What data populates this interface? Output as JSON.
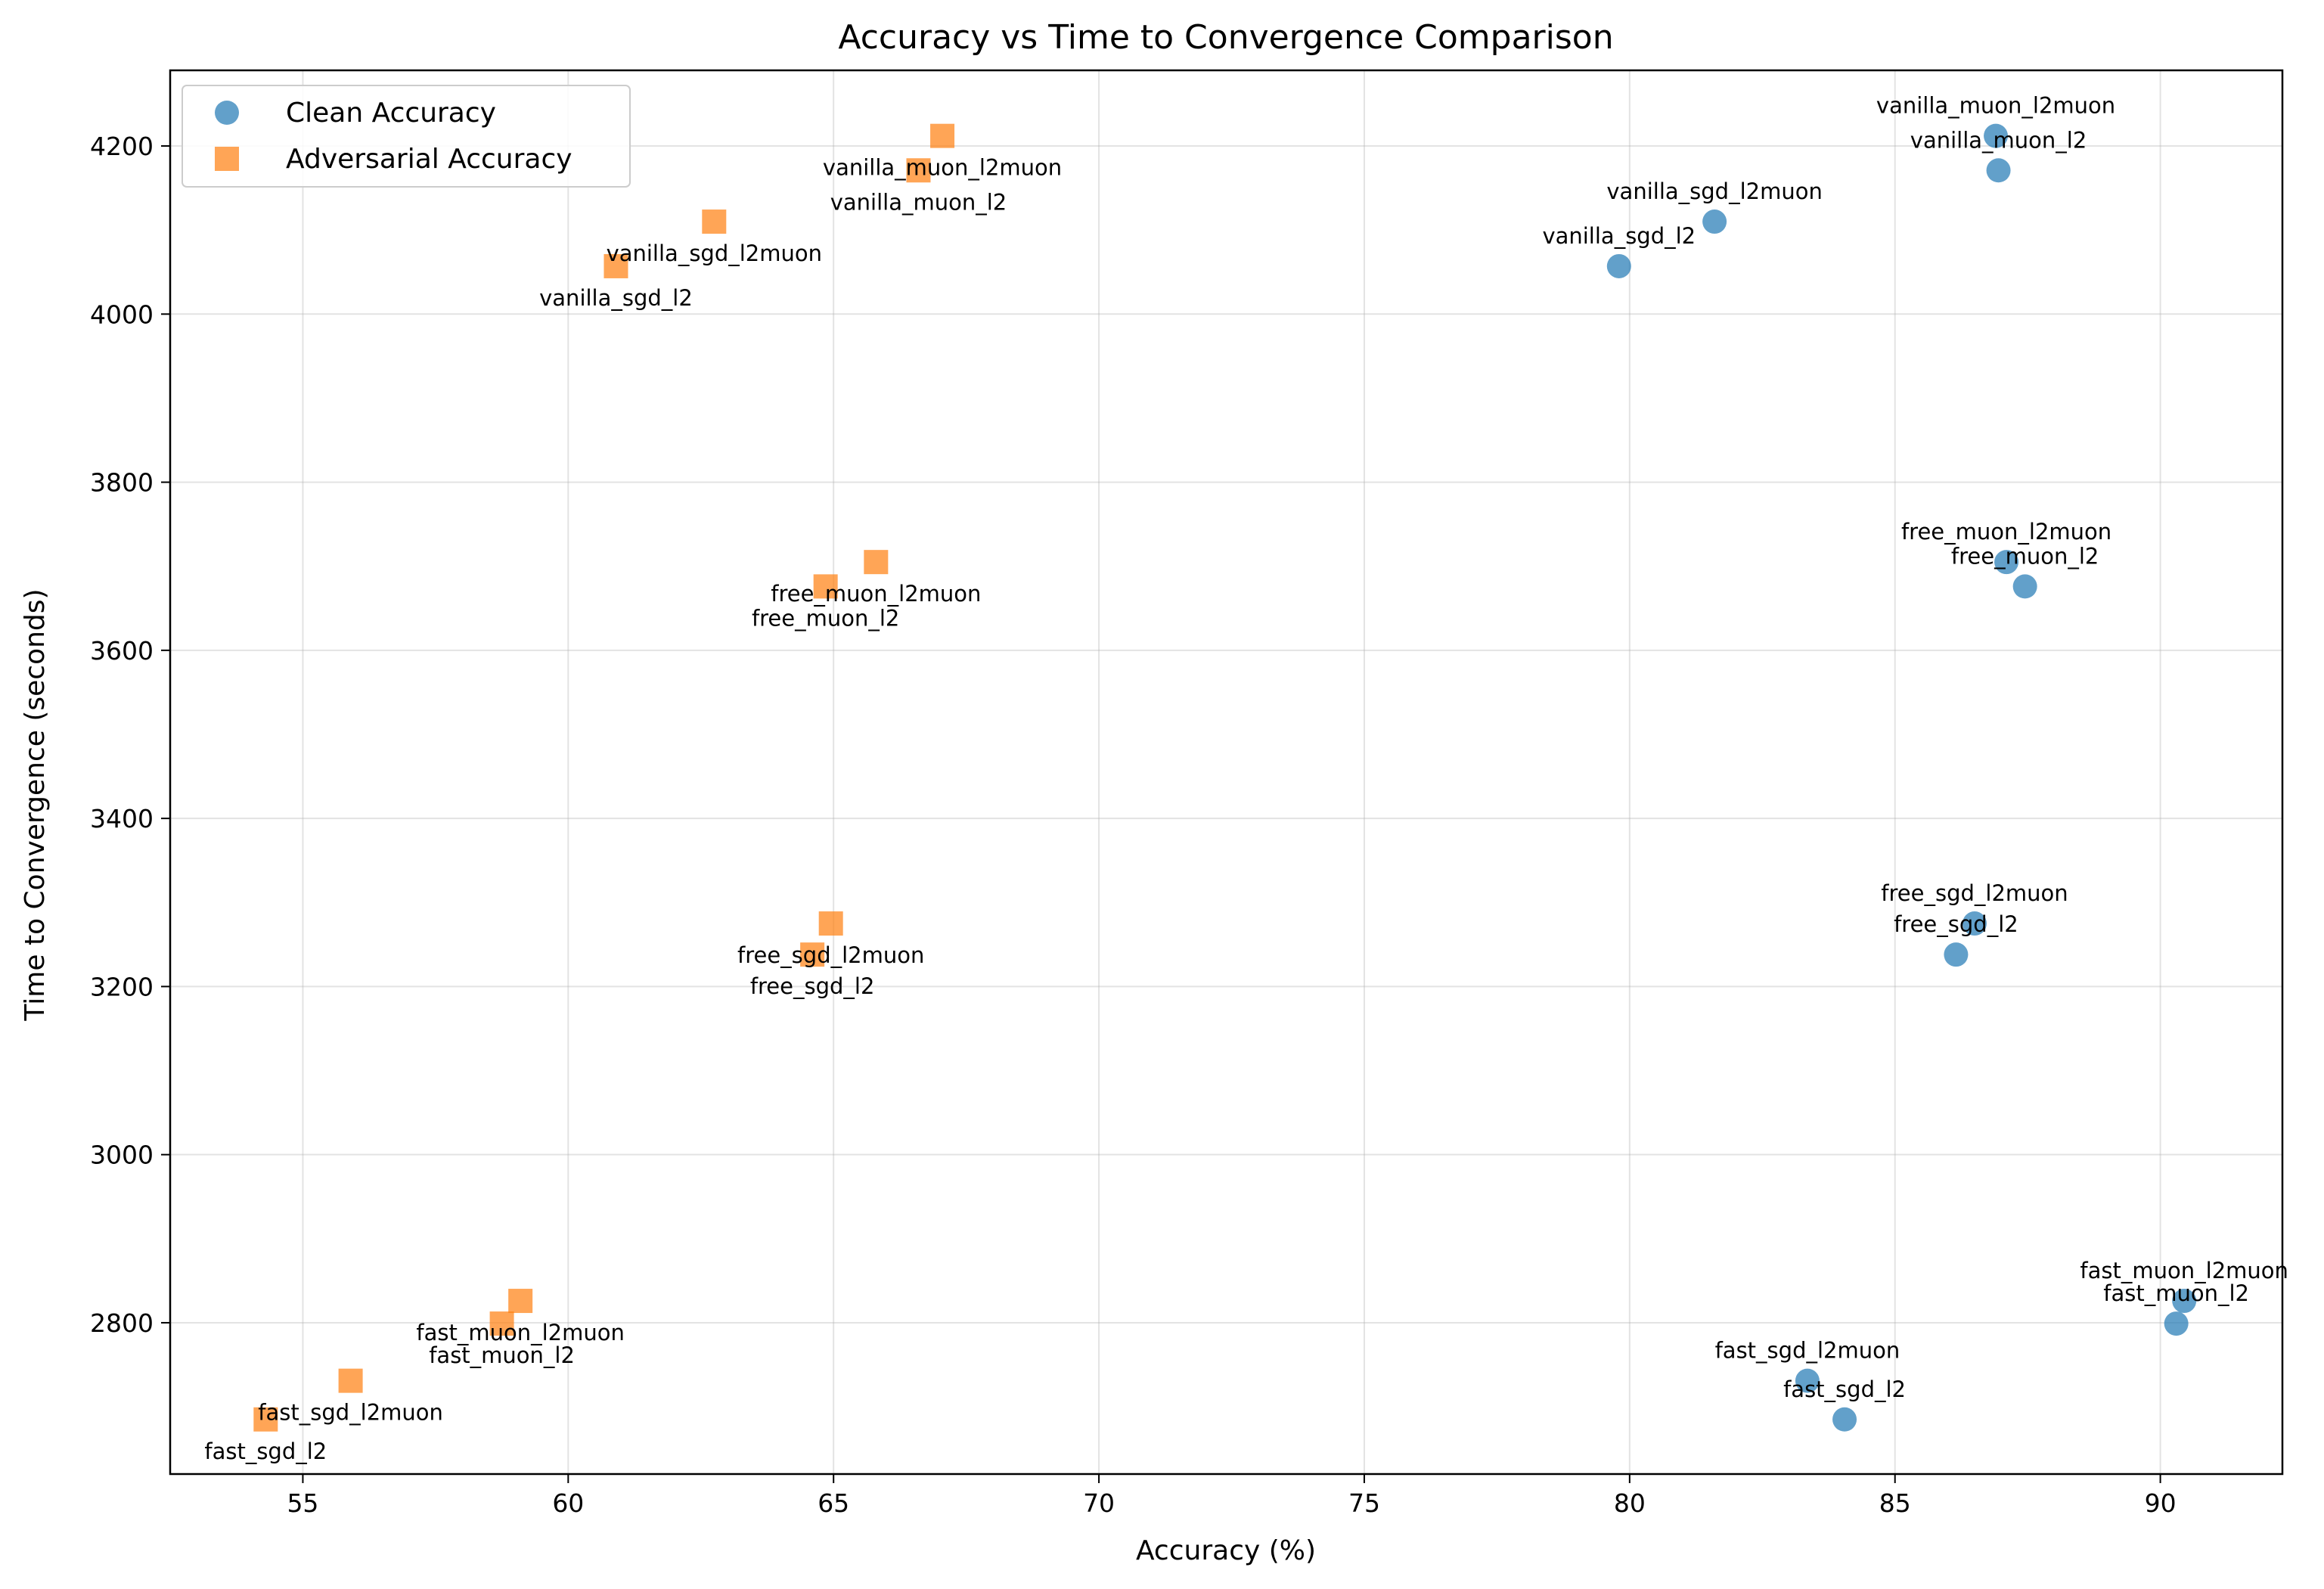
{
  "chart_data": {
    "type": "scatter",
    "title": "Accuracy vs Time to Convergence Comparison",
    "xlabel": "Accuracy (%)",
    "ylabel": "Time to Convergence (seconds)",
    "xlim": [
      52.5,
      92.3
    ],
    "ylim": [
      2620,
      4290
    ],
    "xticks": [
      55,
      60,
      65,
      70,
      75,
      80,
      85,
      90
    ],
    "yticks": [
      2800,
      3000,
      3200,
      3400,
      3600,
      3800,
      4000,
      4200
    ],
    "grid": true,
    "legend_position": "top-left",
    "series": [
      {
        "name": "Clean Accuracy",
        "marker": "circle",
        "color": "#1f77b4",
        "points": [
          {
            "label": "vanilla_muon_l2muon",
            "x": 86.9,
            "y": 4212
          },
          {
            "label": "vanilla_muon_l2",
            "x": 86.95,
            "y": 4171
          },
          {
            "label": "vanilla_sgd_l2muon",
            "x": 81.6,
            "y": 4110
          },
          {
            "label": "vanilla_sgd_l2",
            "x": 79.8,
            "y": 4057
          },
          {
            "label": "free_muon_l2muon",
            "x": 87.1,
            "y": 3705
          },
          {
            "label": "free_muon_l2",
            "x": 87.45,
            "y": 3676
          },
          {
            "label": "free_sgd_l2muon",
            "x": 86.5,
            "y": 3275
          },
          {
            "label": "free_sgd_l2",
            "x": 86.15,
            "y": 3238
          },
          {
            "label": "fast_muon_l2muon",
            "x": 90.45,
            "y": 2826
          },
          {
            "label": "fast_muon_l2",
            "x": 90.3,
            "y": 2799
          },
          {
            "label": "fast_sgd_l2muon",
            "x": 83.35,
            "y": 2731
          },
          {
            "label": "fast_sgd_l2",
            "x": 84.05,
            "y": 2685
          }
        ]
      },
      {
        "name": "Adversarial Accuracy",
        "marker": "square",
        "color": "#ff7f0e",
        "points": [
          {
            "label": "vanilla_muon_l2muon",
            "x": 67.05,
            "y": 4212
          },
          {
            "label": "vanilla_muon_l2",
            "x": 66.6,
            "y": 4171
          },
          {
            "label": "vanilla_sgd_l2muon",
            "x": 62.75,
            "y": 4110
          },
          {
            "label": "vanilla_sgd_l2",
            "x": 60.9,
            "y": 4057
          },
          {
            "label": "free_muon_l2muon",
            "x": 65.8,
            "y": 3705
          },
          {
            "label": "free_muon_l2",
            "x": 64.85,
            "y": 3676
          },
          {
            "label": "free_sgd_l2muon",
            "x": 64.95,
            "y": 3275
          },
          {
            "label": "free_sgd_l2",
            "x": 64.6,
            "y": 3238
          },
          {
            "label": "fast_muon_l2muon",
            "x": 59.1,
            "y": 2826
          },
          {
            "label": "fast_muon_l2",
            "x": 58.75,
            "y": 2799
          },
          {
            "label": "fast_sgd_l2muon",
            "x": 55.9,
            "y": 2731
          },
          {
            "label": "fast_sgd_l2",
            "x": 54.3,
            "y": 2685
          }
        ]
      }
    ]
  }
}
